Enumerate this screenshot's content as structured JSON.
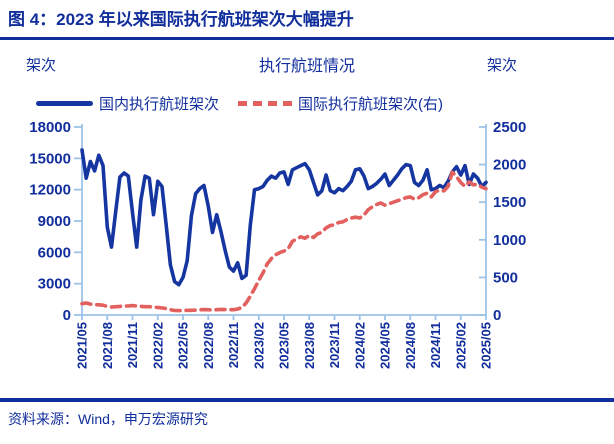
{
  "header": {
    "title": "图 4：2023 年以来国际执行航班架次大幅提升"
  },
  "chart": {
    "title": "执行航班情况",
    "unit_left": "架次",
    "unit_right": "架次"
  },
  "footer": {
    "source": "资料来源：Wind，申万宏源研究"
  },
  "theme": {
    "navy": "#112e9c",
    "red": "#e2605e",
    "axis_blue": "#9cc2e8",
    "background": "#ffffff"
  },
  "chart_data": {
    "type": "line",
    "title": "执行航班情况",
    "grid": false,
    "legend_position": "top",
    "x_note": "semi-monthly points, 2021/05 through 2025/05",
    "left_axis": {
      "label": "架次",
      "min": 0,
      "max": 18000,
      "ticks": [
        0,
        3000,
        6000,
        9000,
        12000,
        15000,
        18000
      ]
    },
    "right_axis": {
      "label": "架次",
      "min": 0,
      "max": 2500,
      "ticks": [
        0,
        500,
        1000,
        1500,
        2000,
        2500
      ]
    },
    "x_tick_labels": [
      "2021/05",
      "2021/08",
      "2021/11",
      "2022/02",
      "2022/05",
      "2022/08",
      "2022/11",
      "2023/02",
      "2023/05",
      "2023/08",
      "2023/11",
      "2024/02",
      "2024/05",
      "2024/08",
      "2024/11",
      "2025/02",
      "2025/05"
    ],
    "series": [
      {
        "name": "国内执行航班架次",
        "axis": "left",
        "color": "#1535a0",
        "line_style": "solid",
        "values": [
          15800,
          13100,
          14700,
          13800,
          15300,
          14300,
          8400,
          6500,
          9900,
          13200,
          13600,
          13300,
          9800,
          6500,
          11000,
          13300,
          13100,
          9600,
          12800,
          12300,
          8600,
          4800,
          3200,
          2900,
          3600,
          5200,
          9500,
          11600,
          12100,
          12400,
          10400,
          7900,
          9600,
          8000,
          6200,
          4600,
          4200,
          5000,
          3500,
          3800,
          8600,
          12000,
          12100,
          12300,
          12900,
          13300,
          13100,
          13600,
          13700,
          12500,
          13900,
          14100,
          14300,
          14500,
          13900,
          12700,
          11500,
          11900,
          13400,
          11900,
          11700,
          12100,
          11900,
          12300,
          12800,
          13900,
          14000,
          13300,
          12100,
          12300,
          12600,
          13000,
          13500,
          12400,
          12900,
          13400,
          14000,
          14400,
          14300,
          12700,
          12400,
          12900,
          13900,
          12000,
          12100,
          12400,
          12200,
          12800,
          13700,
          14200,
          13400,
          14300,
          12500,
          13500,
          13100,
          12300,
          12700
        ]
      },
      {
        "name": "国际执行航班架次(右)",
        "axis": "right",
        "color": "#e2605e",
        "line_style": "dashed",
        "values": [
          150,
          160,
          145,
          140,
          135,
          130,
          115,
          105,
          110,
          115,
          120,
          120,
          125,
          120,
          115,
          110,
          110,
          105,
          100,
          95,
          85,
          70,
          60,
          58,
          60,
          62,
          62,
          65,
          70,
          72,
          70,
          65,
          70,
          75,
          72,
          70,
          70,
          80,
          100,
          160,
          250,
          350,
          460,
          560,
          680,
          750,
          800,
          830,
          850,
          880,
          980,
          1010,
          1040,
          1020,
          1060,
          1030,
          1080,
          1100,
          1160,
          1190,
          1200,
          1230,
          1240,
          1270,
          1290,
          1300,
          1290,
          1330,
          1400,
          1440,
          1470,
          1490,
          1460,
          1480,
          1500,
          1520,
          1540,
          1560,
          1570,
          1540,
          1560,
          1600,
          1620,
          1570,
          1640,
          1660,
          1650,
          1710,
          1900,
          1840,
          1760,
          1710,
          1770,
          1730,
          1740,
          1700,
          1680
        ]
      }
    ]
  }
}
